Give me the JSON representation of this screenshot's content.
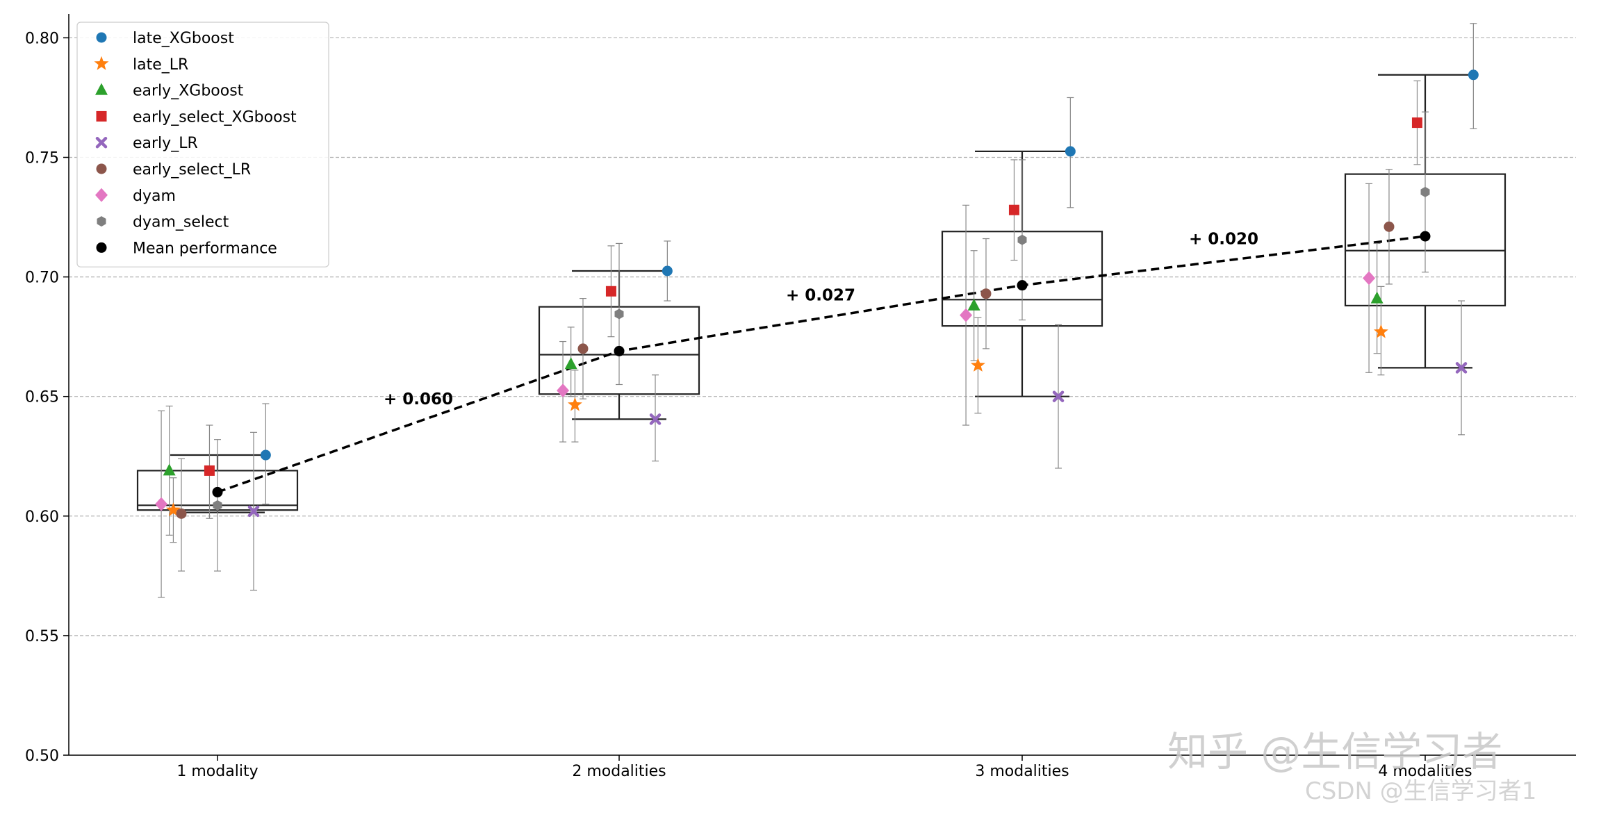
{
  "chart_data": {
    "type": "box+scatter",
    "title": "",
    "xlabel": "",
    "ylabel": "",
    "ylim": [
      0.5,
      0.81
    ],
    "yticks": [
      0.5,
      0.55,
      0.6,
      0.65,
      0.7,
      0.75,
      0.8
    ],
    "ytick_labels": [
      "0.50",
      "0.55",
      "0.60",
      "0.65",
      "0.70",
      "0.75",
      "0.80"
    ],
    "categories": [
      "1 modality",
      "2 modalities",
      "3 modalities",
      "4 modalities"
    ],
    "grid": "horizontal dashed",
    "legend_position": "top-left",
    "series": [
      {
        "name": "late_XGboost",
        "marker": "circle",
        "color": "#1f77b4",
        "offset": 0.12,
        "values": [
          0.6255,
          0.7025,
          0.7525,
          0.7845
        ],
        "err_low": [
          0.605,
          0.69,
          0.729,
          0.762
        ],
        "err_high": [
          0.647,
          0.715,
          0.775,
          0.806
        ]
      },
      {
        "name": "late_LR",
        "marker": "star",
        "color": "#ff7f0e",
        "offset": -0.11,
        "values": [
          0.6025,
          0.6465,
          0.663,
          0.677
        ],
        "err_low": [
          0.589,
          0.631,
          0.643,
          0.659
        ],
        "err_high": [
          0.616,
          0.661,
          0.683,
          0.696
        ]
      },
      {
        "name": "early_XGboost",
        "marker": "triangle",
        "color": "#2ca02c",
        "offset": -0.12,
        "values": [
          0.619,
          0.6635,
          0.688,
          0.691
        ],
        "err_low": [
          0.592,
          0.65,
          0.665,
          0.668
        ],
        "err_high": [
          0.646,
          0.679,
          0.711,
          0.714
        ]
      },
      {
        "name": "early_select_XGboost",
        "marker": "square",
        "color": "#d62728",
        "offset": -0.02,
        "values": [
          0.619,
          0.694,
          0.728,
          0.7645
        ],
        "err_low": [
          0.599,
          0.675,
          0.707,
          0.747
        ],
        "err_high": [
          0.638,
          0.713,
          0.749,
          0.782
        ]
      },
      {
        "name": "early_LR",
        "marker": "x",
        "color": "#9467bd",
        "offset": 0.09,
        "values": [
          0.602,
          0.6405,
          0.65,
          0.662
        ],
        "err_low": [
          0.569,
          0.623,
          0.62,
          0.634
        ],
        "err_high": [
          0.635,
          0.659,
          0.68,
          0.69
        ]
      },
      {
        "name": "early_select_LR",
        "marker": "circle",
        "color": "#8c564b",
        "offset": -0.09,
        "values": [
          0.601,
          0.67,
          0.693,
          0.721
        ],
        "err_low": [
          0.577,
          0.649,
          0.67,
          0.697
        ],
        "err_high": [
          0.624,
          0.691,
          0.716,
          0.745
        ]
      },
      {
        "name": "dyam",
        "marker": "diamond",
        "color": "#e377c2",
        "offset": -0.14,
        "values": [
          0.605,
          0.6525,
          0.684,
          0.6995
        ],
        "err_low": [
          0.566,
          0.631,
          0.638,
          0.66
        ],
        "err_high": [
          0.644,
          0.673,
          0.73,
          0.739
        ]
      },
      {
        "name": "dyam_select",
        "marker": "hexagon",
        "color": "#7f7f7f",
        "offset": 0.0,
        "values": [
          0.6045,
          0.6845,
          0.7155,
          0.7355
        ],
        "err_low": [
          0.577,
          0.655,
          0.682,
          0.702
        ],
        "err_high": [
          0.632,
          0.714,
          0.749,
          0.769
        ]
      },
      {
        "name": "Mean performance",
        "marker": "circle",
        "color": "#000000",
        "offset": 0.0,
        "values": [
          0.61,
          0.669,
          0.6965,
          0.717
        ]
      }
    ],
    "boxes": [
      {
        "q1": 0.6025,
        "median": 0.6045,
        "q3": 0.619,
        "whisker_low": 0.6015,
        "whisker_high": 0.6255
      },
      {
        "q1": 0.651,
        "median": 0.6675,
        "q3": 0.6875,
        "whisker_low": 0.6405,
        "whisker_high": 0.7025
      },
      {
        "q1": 0.6795,
        "median": 0.6905,
        "q3": 0.719,
        "whisker_low": 0.65,
        "whisker_high": 0.7525
      },
      {
        "q1": 0.688,
        "median": 0.711,
        "q3": 0.743,
        "whisker_low": 0.662,
        "whisker_high": 0.7845
      }
    ],
    "annotations": [
      {
        "text": "+ 0.060",
        "x_between": [
          0,
          1
        ],
        "y": 0.649
      },
      {
        "text": "+ 0.027",
        "x_between": [
          1,
          2
        ],
        "y": 0.6925
      },
      {
        "text": "+ 0.020",
        "x_between": [
          2,
          3
        ],
        "y": 0.716
      }
    ]
  },
  "watermark": {
    "main": "知乎 @生信学习者",
    "sub": "CSDN @生信学习者1"
  },
  "colors": {
    "box": "#222222",
    "grid": "#b0b0b0",
    "errorbar": "#888888",
    "axis": "#000000"
  }
}
